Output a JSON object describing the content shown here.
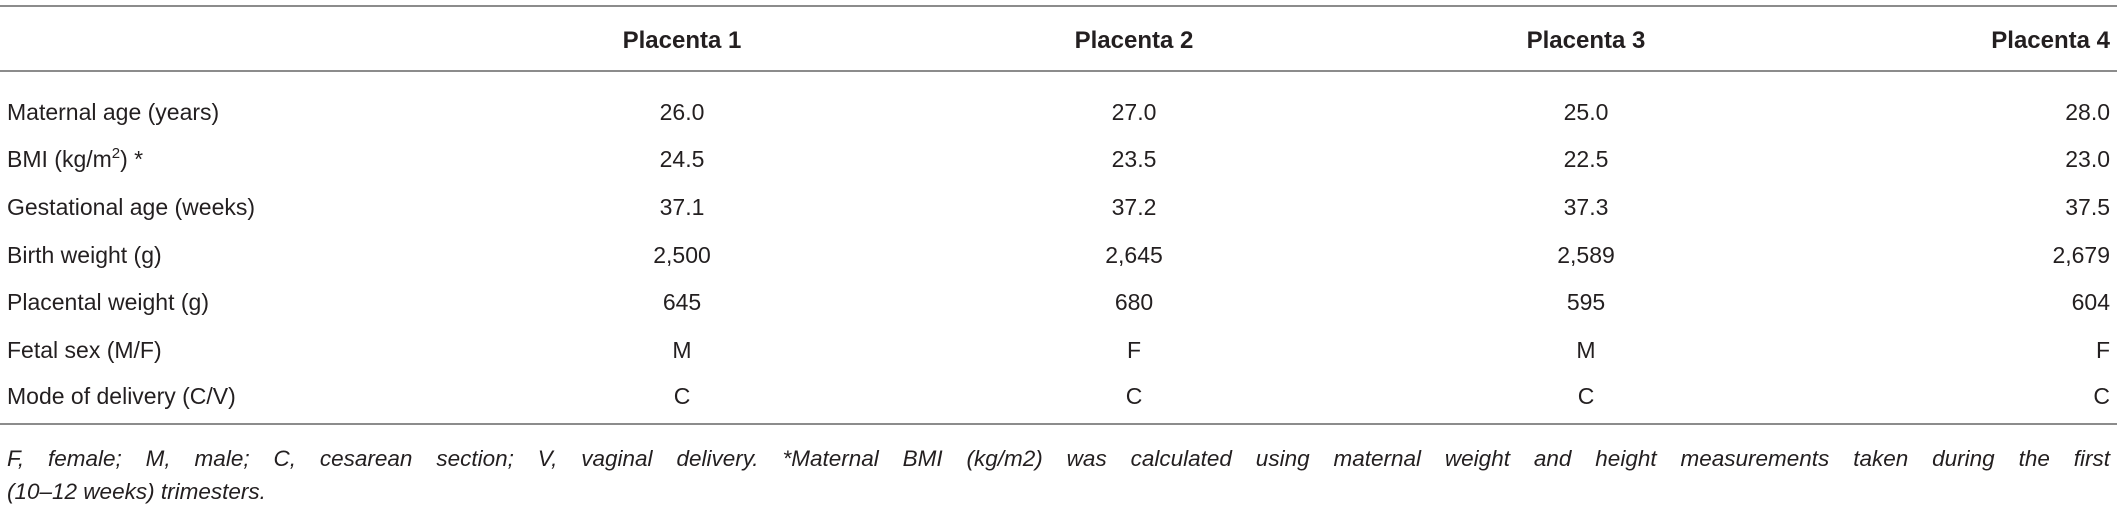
{
  "table": {
    "header": [
      "Placenta 1",
      "Placenta 2",
      "Placenta 3",
      "Placenta 4"
    ],
    "rows": [
      {
        "label": {
          "text": "Maternal age (years)"
        },
        "cells": [
          "26.0",
          "27.0",
          "25.0",
          "28.0"
        ]
      },
      {
        "label": {
          "text": "BMI (kg/m",
          "sup": "2",
          "suffix": ") *"
        },
        "cells": [
          "24.5",
          "23.5",
          "22.5",
          "23.0"
        ]
      },
      {
        "label": {
          "text": "Gestational age (weeks)"
        },
        "cells": [
          "37.1",
          "37.2",
          "37.3",
          "37.5"
        ]
      },
      {
        "label": {
          "text": "Birth weight (g)"
        },
        "cells": [
          "2,500",
          "2,645",
          "2,589",
          "2,679"
        ]
      },
      {
        "label": {
          "text": "Placental weight (g)"
        },
        "cells": [
          "645",
          "680",
          "595",
          "604"
        ]
      },
      {
        "label": {
          "text": "Fetal sex (M/F)"
        },
        "cells": [
          "M",
          "F",
          "M",
          "F"
        ]
      },
      {
        "label": {
          "text": "Mode of delivery (C/V)"
        },
        "cells": [
          "C",
          "C",
          "C",
          "C"
        ]
      }
    ],
    "footnote": [
      "F, female; M, male; C, cesarean section; V, vaginal delivery. *Maternal BMI (kg/m2) was calculated using maternal weight and height measurements taken during the first",
      "(10–12 weeks) trimesters."
    ]
  }
}
